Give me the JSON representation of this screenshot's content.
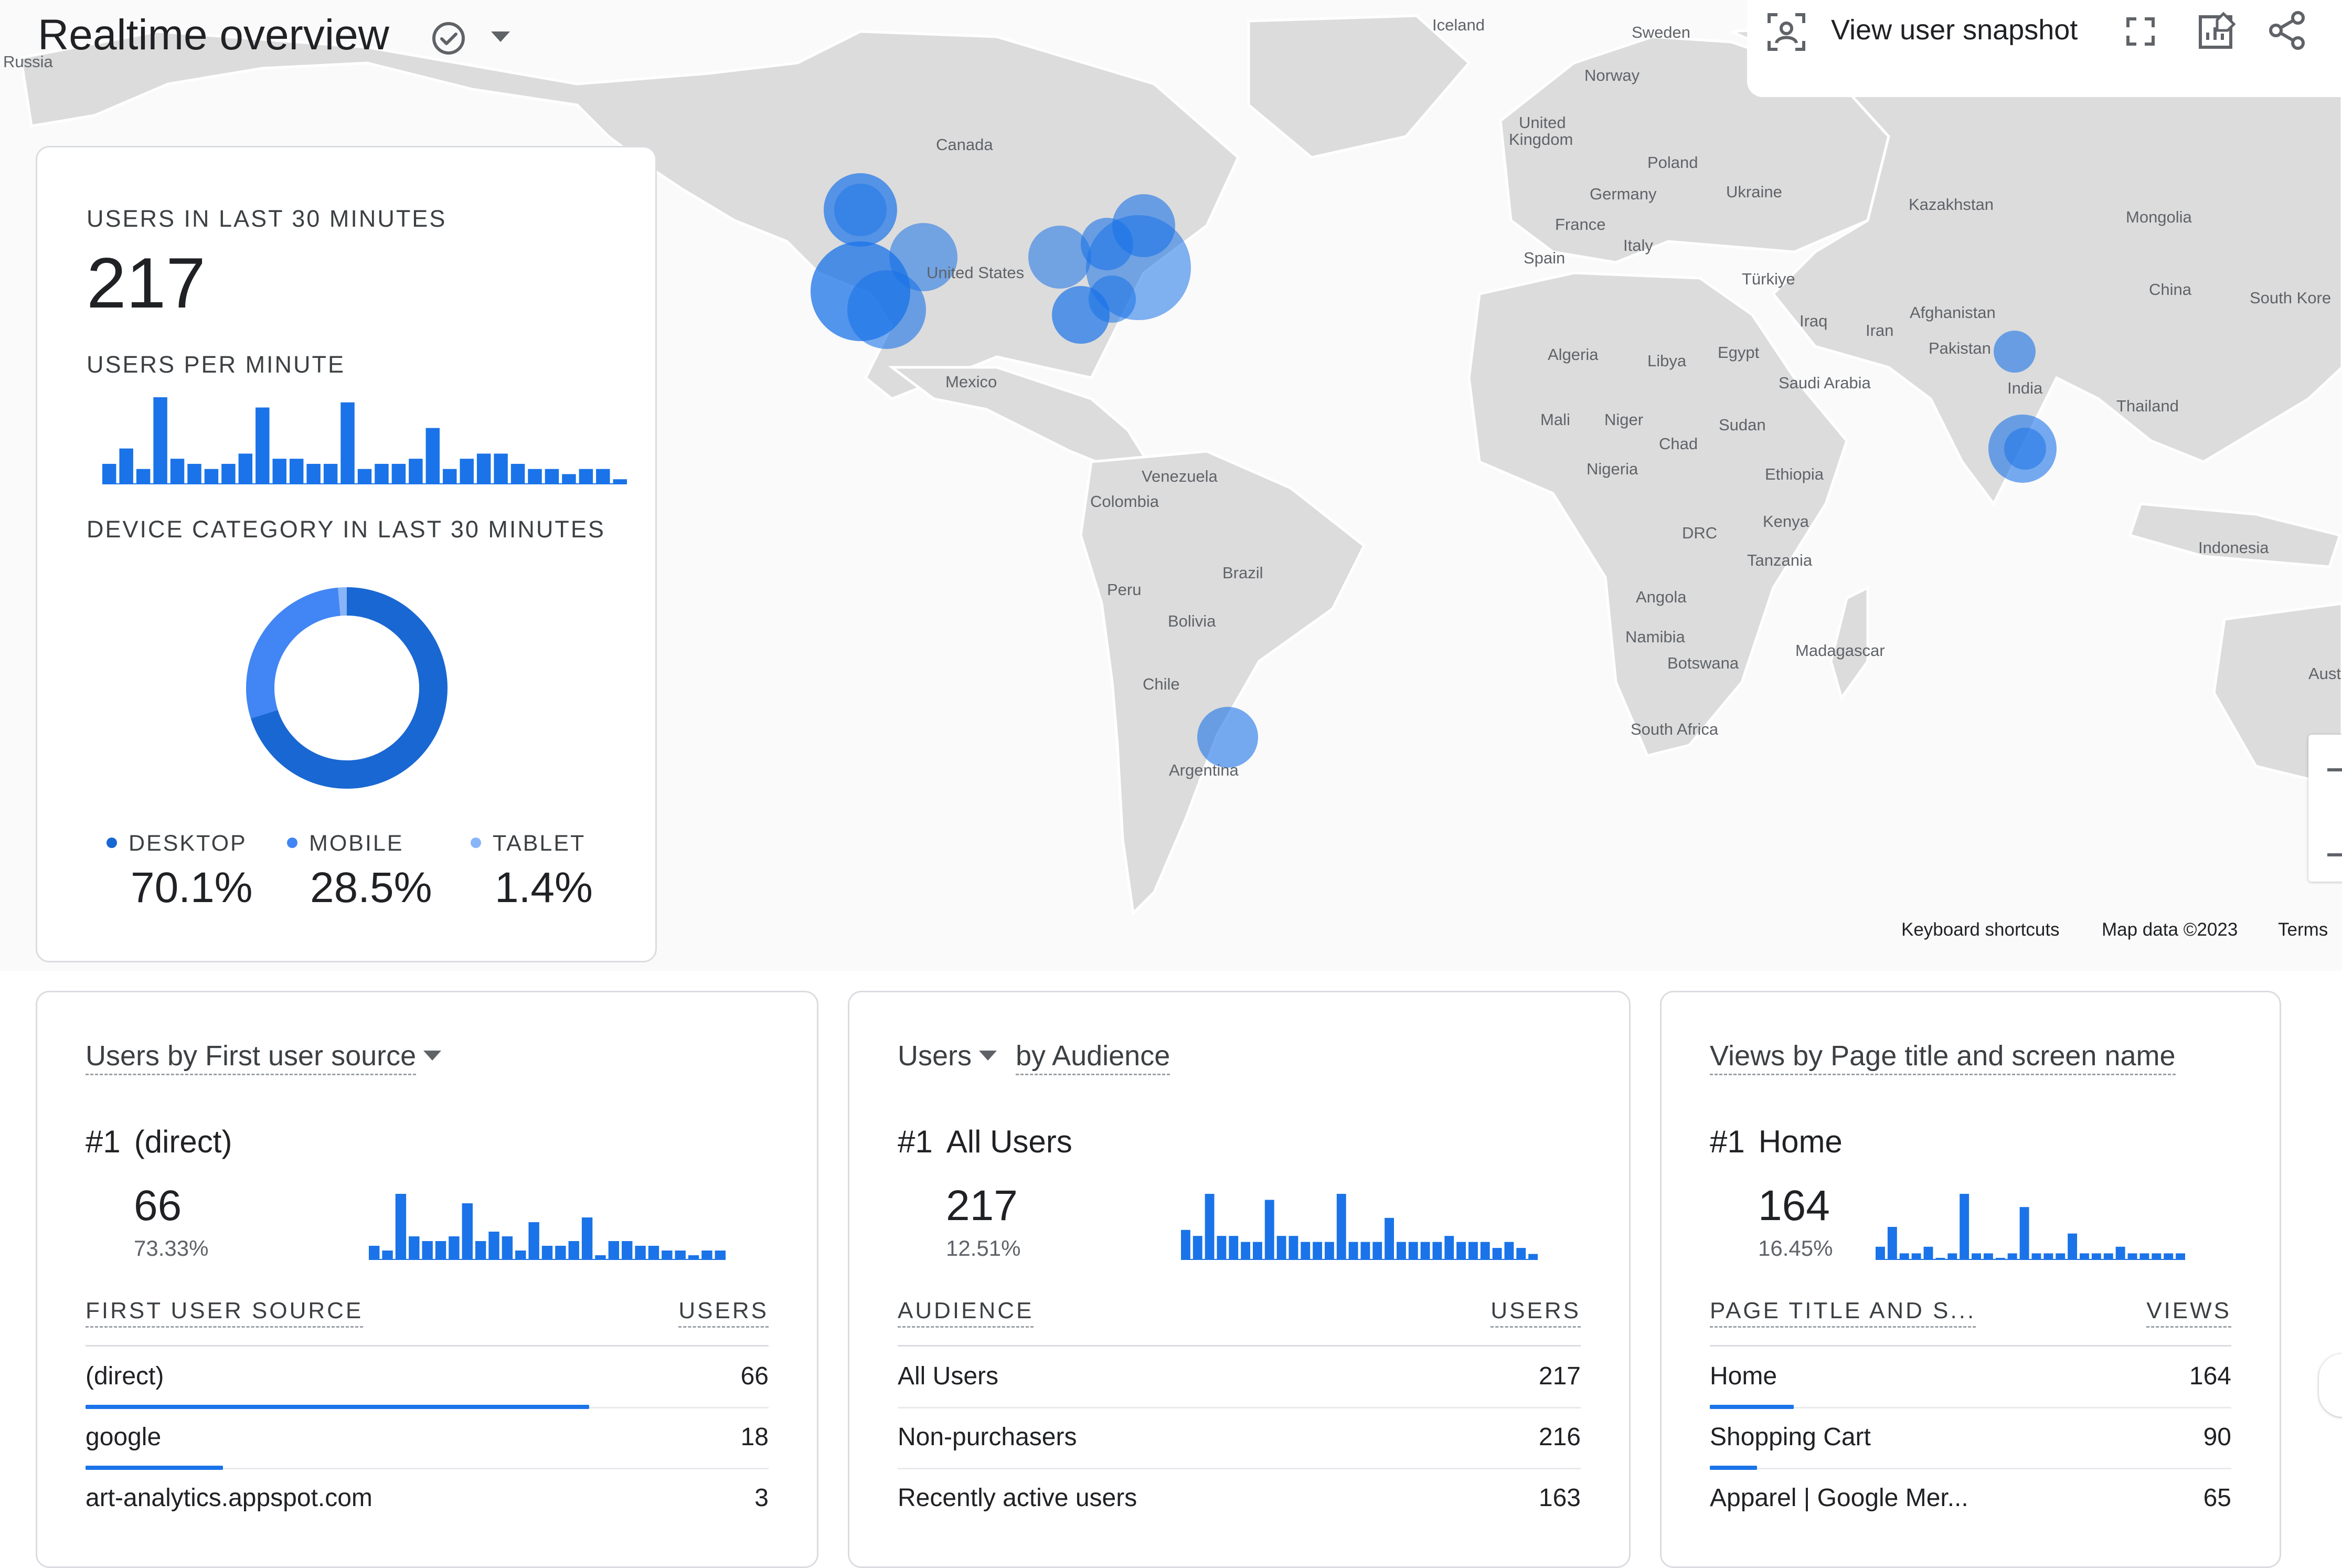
{
  "header": {
    "title": "Realtime overview",
    "check_icon": "check-circle-icon",
    "dropdown_icon": "caret-down-icon"
  },
  "toolbar": {
    "snapshot_label": "View user snapshot",
    "snapshot_icon": "user-snapshot-icon",
    "fullscreen_icon": "fullscreen-icon",
    "customize_icon": "edit-chart-icon",
    "share_icon": "share-icon"
  },
  "map": {
    "countries": [
      "Russia",
      "Iceland",
      "Sweden",
      "Norway",
      "United",
      "Kingdom",
      "Poland",
      "Canada",
      "Germany",
      "Ukraine",
      "Kazakhstan",
      "Mongolia",
      "France",
      "Italy",
      "United States",
      "Spain",
      "Türkiye",
      "China",
      "South Kore",
      "Iraq",
      "Iran",
      "Afghanistan",
      "Pakistan",
      "Algeria",
      "Libya",
      "Egypt",
      "Saudi Arabia",
      "India",
      "Mexico",
      "Thailand",
      "Mali",
      "Niger",
      "Chad",
      "Sudan",
      "Nigeria",
      "Ethiopia",
      "Venezuela",
      "Colombia",
      "DRC",
      "Kenya",
      "Tanzania",
      "Indonesia",
      "Brazil",
      "Peru",
      "Bolivia",
      "Angola",
      "Namibia",
      "Botswana",
      "Madagascar",
      "Aust",
      "Chile",
      "South Africa",
      "Argentina"
    ],
    "footer": {
      "shortcuts": "Keyboard shortcuts",
      "data": "Map data ©2023",
      "terms": "Terms"
    },
    "accent_color": "#1a73e8"
  },
  "summary": {
    "users_caption": "USERS IN LAST 30 MINUTES",
    "users_value": "217",
    "per_minute_caption": "USERS PER MINUTE",
    "per_minute_bars": [
      4,
      7,
      3,
      17,
      5,
      4,
      3,
      4,
      6,
      15,
      5,
      5,
      4,
      4,
      16,
      3,
      4,
      4,
      5,
      11,
      3,
      5,
      6,
      6,
      4,
      3,
      3,
      2,
      3,
      3,
      1
    ],
    "device_caption": "DEVICE CATEGORY IN LAST 30 MINUTES",
    "devices": [
      {
        "label": "DESKTOP",
        "value": "70.1%",
        "share": 70.1,
        "color": "#1967d2"
      },
      {
        "label": "MOBILE",
        "value": "28.5%",
        "share": 28.5,
        "color": "#4285f4"
      },
      {
        "label": "TABLET",
        "value": "1.4%",
        "share": 1.4,
        "color": "#8ab4f8"
      }
    ]
  },
  "source_card": {
    "title": "Users by First user source",
    "rank_no": "#1",
    "rank_name": "(direct)",
    "number": "66",
    "percent": "73.33%",
    "spark": [
      3,
      2,
      14,
      5,
      4,
      4,
      5,
      12,
      4,
      6,
      5,
      2,
      8,
      3,
      3,
      4,
      9,
      1,
      4,
      4,
      3,
      3,
      2,
      2,
      1,
      2,
      2
    ],
    "col_dim": "FIRST USER SOURCE",
    "col_metric": "USERS",
    "rows": [
      {
        "label": "(direct)",
        "value": "66",
        "share": 1.0
      },
      {
        "label": "google",
        "value": "18",
        "share": 0.273
      },
      {
        "label": "art-analytics.appspot.com",
        "value": "3",
        "share": 0.045
      }
    ]
  },
  "audience_card": {
    "title_metric": "Users",
    "title_rest": "by Audience",
    "rank_no": "#1",
    "rank_name": "All Users",
    "number": "217",
    "percent": "12.51%",
    "spark": [
      5,
      4,
      11,
      4,
      4,
      3,
      3,
      10,
      4,
      4,
      3,
      3,
      3,
      11,
      3,
      3,
      3,
      7,
      3,
      3,
      3,
      3,
      4,
      3,
      3,
      3,
      2,
      3,
      2,
      1
    ],
    "col_dim": "AUDIENCE",
    "col_metric": "USERS",
    "rows": [
      {
        "label": "All Users",
        "value": "217",
        "share": 1.0
      },
      {
        "label": "Non-purchasers",
        "value": "216",
        "share": 0.995
      },
      {
        "label": "Recently active users",
        "value": "163",
        "share": 0.75
      }
    ]
  },
  "views_card": {
    "title": "Views by Page title and screen name",
    "rank_no": "#1",
    "rank_name": "Home",
    "number": "164",
    "percent": "16.45%",
    "spark": [
      2,
      5,
      1,
      1,
      2,
      0,
      1,
      10,
      1,
      1,
      0,
      1,
      8,
      1,
      1,
      1,
      4,
      1,
      1,
      1,
      2,
      1,
      1,
      1,
      1,
      1
    ],
    "col_dim": "PAGE TITLE AND S...",
    "col_metric": "VIEWS",
    "rows": [
      {
        "label": "Home",
        "value": "164",
        "share": 1.0
      },
      {
        "label": "Shopping Cart",
        "value": "90",
        "share": 0.549
      },
      {
        "label": "Apparel | Google Mer...",
        "value": "65",
        "share": 0.396
      }
    ]
  }
}
